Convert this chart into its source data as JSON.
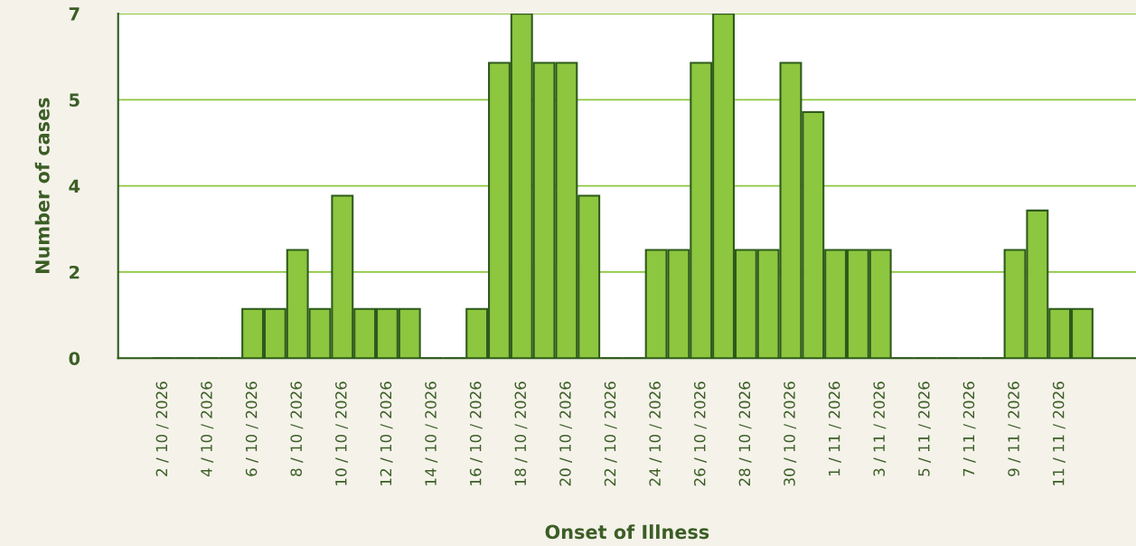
{
  "chart_data": {
    "type": "bar",
    "xlabel": "Onset of Illness",
    "ylabel": "Number of cases",
    "categories": [
      "2 / 10 / 2026",
      null,
      "4 / 10 / 2026",
      null,
      "6 / 10 / 2026",
      null,
      "8 / 10 / 2026",
      null,
      "10 / 10 / 2026",
      null,
      "12 / 10 / 2026",
      null,
      "14 / 10 / 2026",
      null,
      "16 / 10 / 2026",
      null,
      "18 / 10 / 2026",
      null,
      "20 / 10 / 2026",
      null,
      "22 / 10 / 2026",
      null,
      "24 / 10 / 2026",
      null,
      "26 / 10 / 2026",
      null,
      "28 / 10 / 2026",
      null,
      "30 / 10 / 2026",
      null,
      "1 / 11 / 2026",
      null,
      "3 / 11 / 2026",
      null,
      "5 / 11 / 2026",
      null,
      "7 / 11 / 2026",
      null,
      "9 / 11 / 2026",
      null,
      "11 / 11 / 2026",
      null
    ],
    "values": [
      0,
      0,
      0,
      0,
      1,
      1,
      2.2,
      1,
      3.3,
      1,
      1,
      1,
      0,
      0,
      1,
      6,
      7,
      6,
      6,
      3.3,
      0,
      0,
      2.2,
      2.2,
      6,
      7,
      2.2,
      2.2,
      6,
      5,
      2.2,
      2.2,
      2.2,
      0,
      0,
      0,
      0,
      0,
      2.2,
      3,
      1,
      1
    ],
    "color": "#8dc63f",
    "ylim": [
      0,
      7
    ],
    "yticks": [
      {
        "value": 0,
        "label": "0"
      },
      {
        "value": 1.75,
        "label": "2"
      },
      {
        "value": 3.5,
        "label": "4"
      },
      {
        "value": 5.25,
        "label": "5"
      },
      {
        "value": 7,
        "label": "7"
      }
    ],
    "grid": "y",
    "legend": false
  }
}
